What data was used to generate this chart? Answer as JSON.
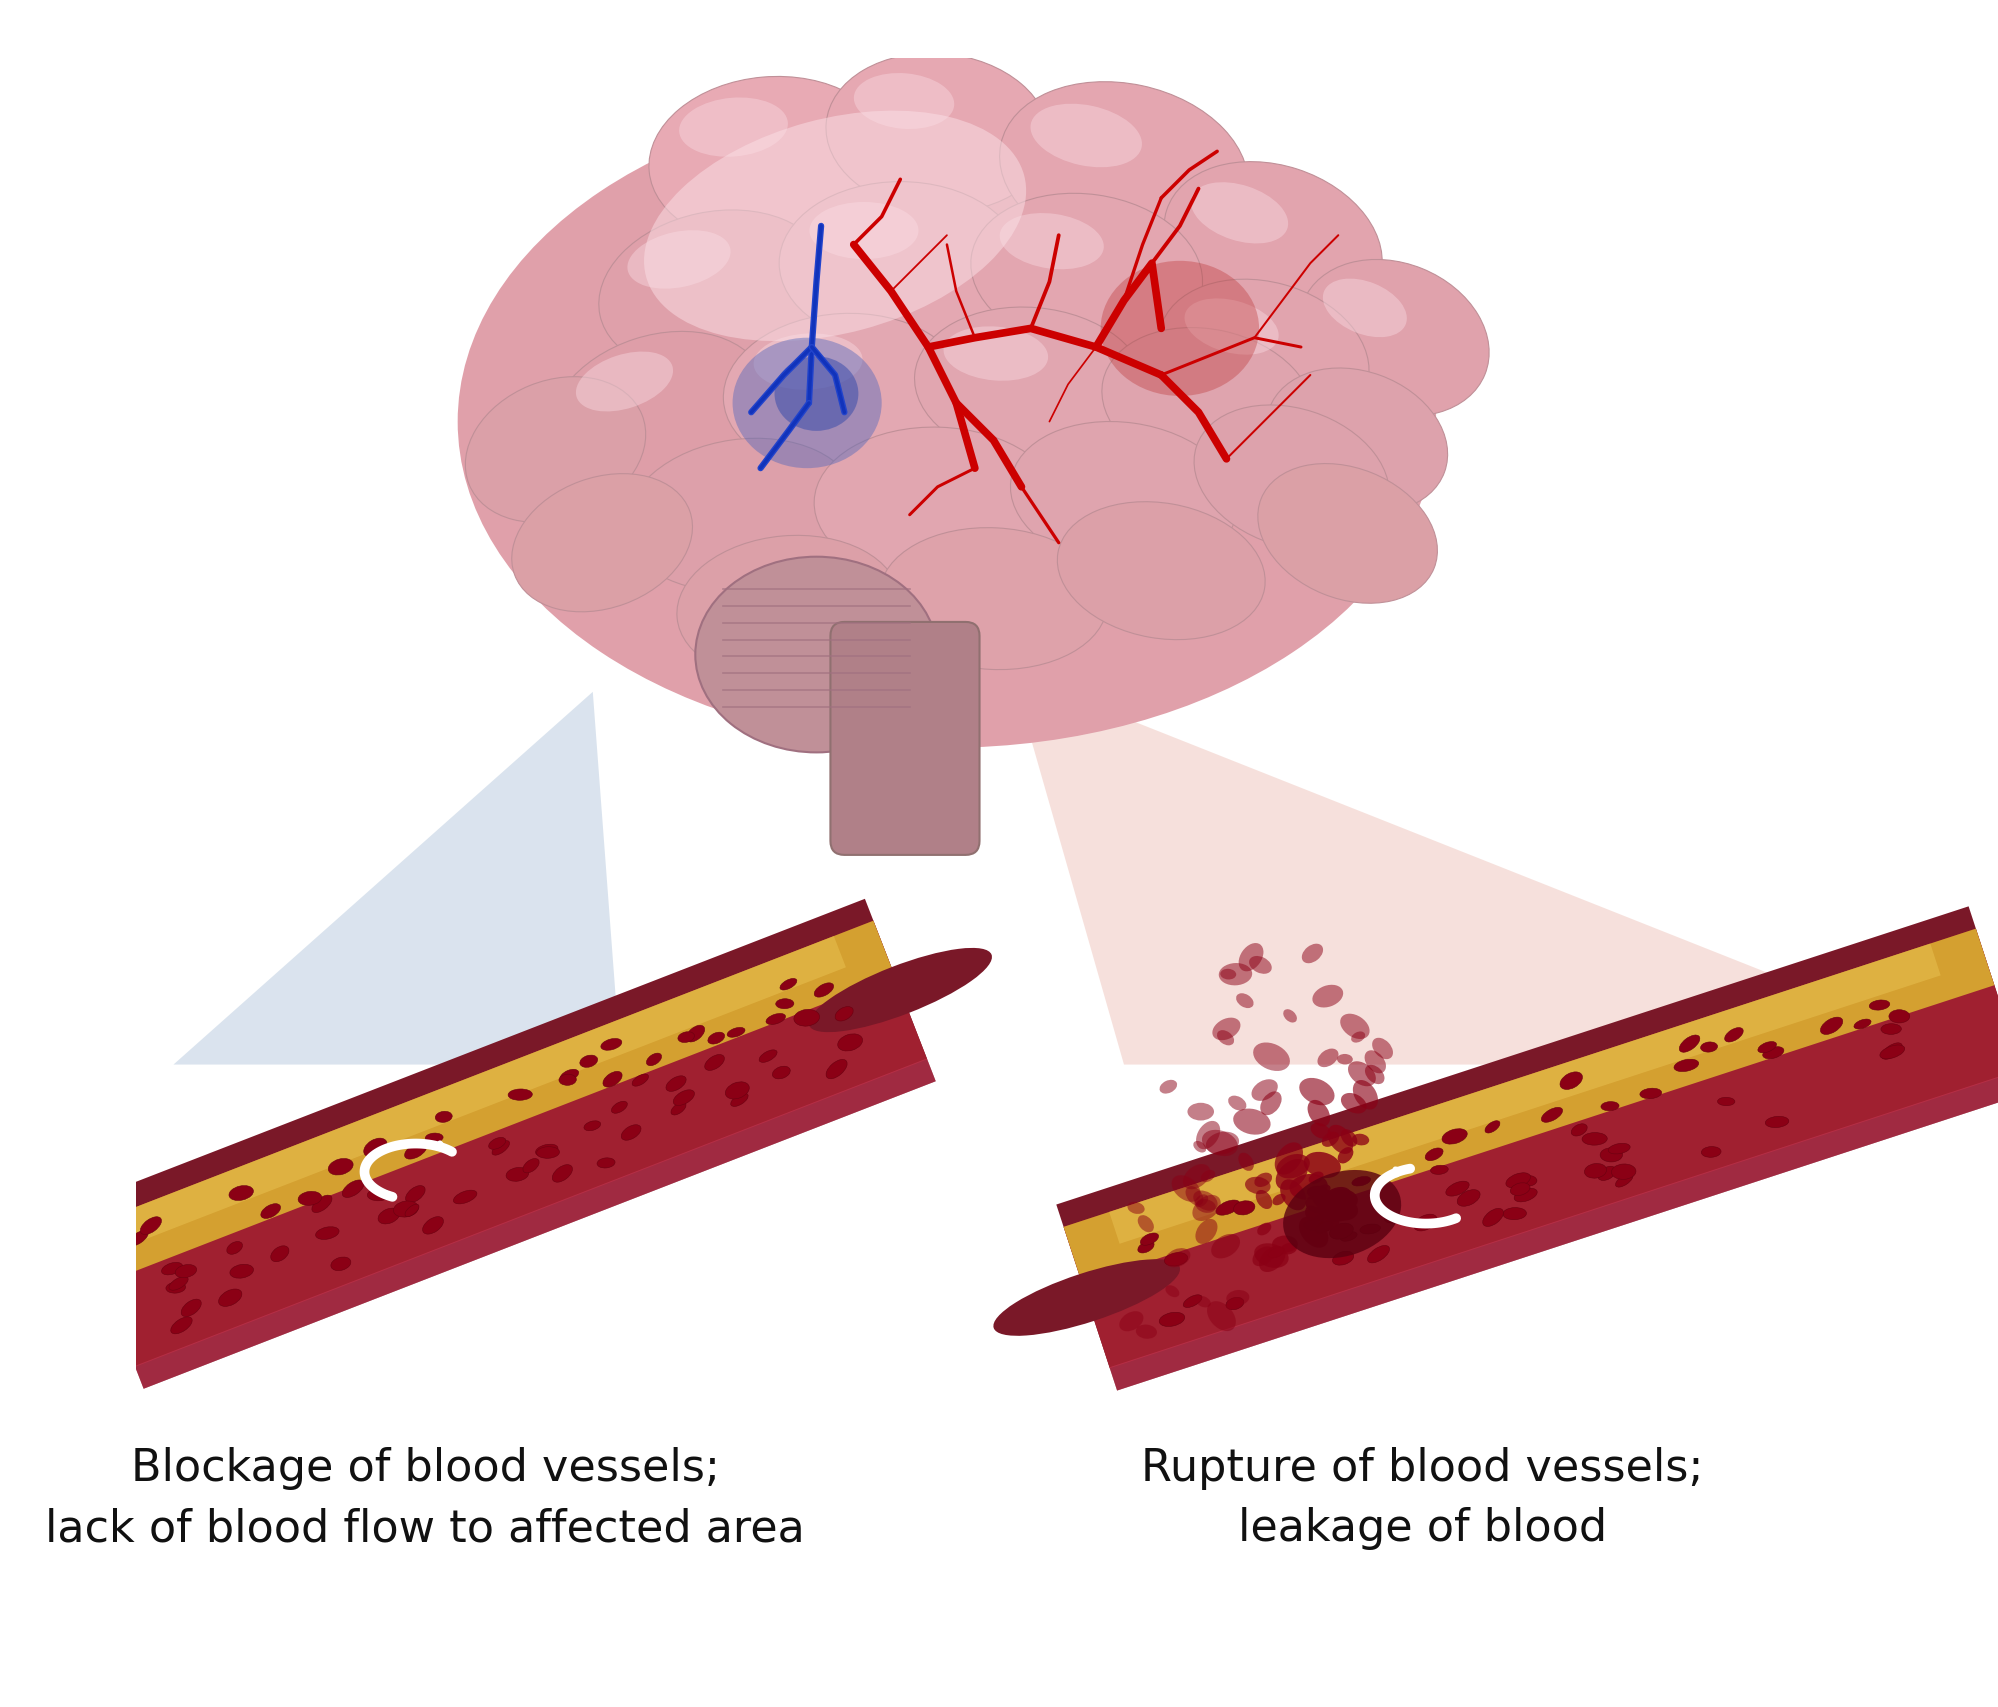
{
  "background_color": "#ffffff",
  "text_left_line1": "Blockage of blood vessels;",
  "text_left_line2": "lack of blood flow to affected area",
  "text_right_line1": "Rupture of blood vessels;",
  "text_right_line2": "leakage of blood",
  "text_color": "#111111",
  "font_size_label": 32,
  "blue_cone_color": "#bccde0",
  "red_cone_color": "#f0c8c0",
  "brain_base_color": "#e8a8b0",
  "brain_fold_color": "#d49098",
  "brain_light_color": "#f5d0d5",
  "brain_dark_color": "#c08090",
  "vessel_outer_color": "#7a1828",
  "vessel_inner_color": "#a02030",
  "vessel_lumen_color": "#8b1520",
  "vessel_highlight_color": "#d04060",
  "plaque_color": "#d4a030",
  "plaque_light_color": "#e8c050",
  "rbc_color": "#8b0015",
  "rbc_edge_color": "#6a0010",
  "arrow_color": "#ffffff",
  "blue_vessel_color": "#2244cc",
  "red_vessel_color": "#cc0000",
  "ischemic_spot_color": "#4060aa",
  "hemorrhage_spot_color": "#aa2020"
}
